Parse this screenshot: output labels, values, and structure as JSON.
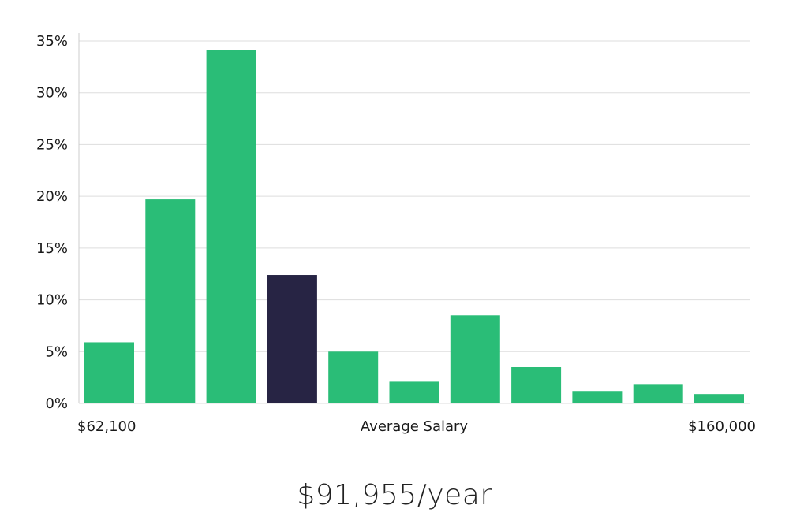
{
  "chart_data": {
    "type": "bar",
    "values": [
      5.9,
      19.7,
      34.1,
      12.4,
      5.0,
      2.1,
      8.5,
      3.5,
      1.2,
      1.8,
      0.9
    ],
    "highlight_index": 3,
    "colors": {
      "bar": "#2abd77",
      "highlight": "#272444",
      "grid": "#dddddd",
      "axis": "#cccccc"
    },
    "ylim": [
      0,
      35
    ],
    "yticks": [
      "0%",
      "5%",
      "10%",
      "15%",
      "20%",
      "25%",
      "30%",
      "35%"
    ],
    "ytick_values": [
      0,
      5,
      10,
      15,
      20,
      25,
      30,
      35
    ],
    "grid": true,
    "x_min_label": "$62,100",
    "x_max_label": "$160,000",
    "xlabel": "Average Salary"
  },
  "headline": "$91,955/year"
}
